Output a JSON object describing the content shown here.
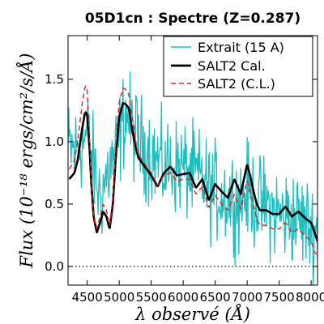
{
  "chart_data": {
    "type": "line",
    "title": "05D1cn : Spectre (Z=0.287)",
    "xlabel": "λ observé (Å)",
    "ylabel": "Flux (10⁻¹⁸ ergs/cm²/s/Å)",
    "xlim": [
      4200,
      8100
    ],
    "ylim": [
      -0.15,
      1.85
    ],
    "xticks": [
      4500,
      5000,
      5500,
      6000,
      6500,
      7000,
      7500,
      8000
    ],
    "yticks": [
      0.0,
      0.5,
      1.0,
      1.5
    ],
    "ytick_labels": [
      "0.0",
      "0.5",
      "1.0",
      "1.5"
    ],
    "zero_line": {
      "y": 0.0,
      "style": "dotted"
    },
    "legend_position": "top-right",
    "series": [
      {
        "name": "Extrait (15 A)",
        "color": "#1fbfbf",
        "style": "solid",
        "noisy": true,
        "x": [
          4200,
          4300,
          4400,
          4500,
          4600,
          4700,
          4800,
          4900,
          5000,
          5100,
          5200,
          5300,
          5400,
          5500,
          5600,
          5700,
          5800,
          5900,
          6000,
          6100,
          6200,
          6300,
          6400,
          6500,
          6600,
          6700,
          6800,
          6900,
          7000,
          7100,
          7200,
          7300,
          7400,
          7500,
          7600,
          7700,
          7800,
          7900,
          8000,
          8100
        ],
        "y": [
          0.95,
          0.92,
          0.98,
          1.05,
          0.8,
          0.55,
          0.72,
          0.85,
          1.0,
          1.25,
          1.1,
          1.0,
          0.95,
          0.9,
          0.85,
          0.78,
          0.82,
          0.8,
          0.78,
          0.75,
          0.72,
          0.7,
          0.62,
          0.6,
          0.58,
          0.55,
          0.55,
          0.52,
          0.6,
          0.55,
          0.5,
          0.48,
          0.45,
          0.42,
          0.4,
          0.4,
          0.38,
          0.35,
          0.3,
          0.3
        ]
      },
      {
        "name": "SALT2 Cal.",
        "color": "#000000",
        "style": "solid",
        "x": [
          4220,
          4300,
          4350,
          4420,
          4460,
          4480,
          4500,
          4530,
          4560,
          4600,
          4650,
          4700,
          4750,
          4800,
          4850,
          4900,
          4950,
          5000,
          5060,
          5100,
          5150,
          5200,
          5260,
          5300,
          5400,
          5500,
          5600,
          5700,
          5800,
          5900,
          6000,
          6100,
          6200,
          6300,
          6400,
          6500,
          6600,
          6700,
          6800,
          6900,
          7000,
          7050,
          7100,
          7150,
          7200,
          7300,
          7400,
          7500,
          7600,
          7700,
          7800,
          7900,
          8000,
          8050,
          8100
        ],
        "y": [
          0.7,
          0.75,
          0.85,
          1.1,
          1.22,
          1.24,
          1.2,
          1.0,
          0.7,
          0.4,
          0.27,
          0.35,
          0.44,
          0.4,
          0.3,
          0.5,
          0.9,
          1.2,
          1.31,
          1.3,
          1.27,
          1.1,
          0.95,
          0.87,
          0.8,
          0.73,
          0.64,
          0.75,
          0.8,
          0.73,
          0.74,
          0.75,
          0.63,
          0.7,
          0.53,
          0.66,
          0.6,
          0.55,
          0.7,
          0.58,
          0.82,
          0.72,
          0.6,
          0.5,
          0.45,
          0.45,
          0.42,
          0.42,
          0.48,
          0.4,
          0.44,
          0.39,
          0.35,
          0.28,
          0.2
        ]
      },
      {
        "name": "SALT2 (C.L.)",
        "color": "#e02020",
        "style": "dashed",
        "x": [
          4220,
          4300,
          4350,
          4420,
          4460,
          4480,
          4500,
          4530,
          4560,
          4600,
          4650,
          4700,
          4750,
          4800,
          4850,
          4900,
          4950,
          5000,
          5060,
          5100,
          5150,
          5200,
          5260,
          5300,
          5400,
          5500,
          5600,
          5700,
          5800,
          5900,
          6000,
          6100,
          6200,
          6300,
          6400,
          6500,
          6600,
          6700,
          6800,
          6900,
          7000,
          7050,
          7100,
          7150,
          7200,
          7300,
          7400,
          7500,
          7600,
          7700,
          7800,
          7900,
          8000,
          8050,
          8100
        ],
        "y": [
          0.78,
          0.85,
          1.0,
          1.3,
          1.43,
          1.45,
          1.4,
          1.1,
          0.72,
          0.4,
          0.3,
          0.4,
          0.5,
          0.45,
          0.32,
          0.55,
          1.0,
          1.32,
          1.43,
          1.42,
          1.38,
          1.2,
          1.0,
          0.9,
          0.82,
          0.75,
          0.65,
          0.73,
          0.75,
          0.68,
          0.7,
          0.7,
          0.58,
          0.64,
          0.47,
          0.57,
          0.5,
          0.45,
          0.58,
          0.46,
          0.69,
          0.6,
          0.48,
          0.38,
          0.33,
          0.33,
          0.3,
          0.3,
          0.35,
          0.27,
          0.3,
          0.25,
          0.2,
          0.12,
          0.08
        ]
      }
    ]
  }
}
